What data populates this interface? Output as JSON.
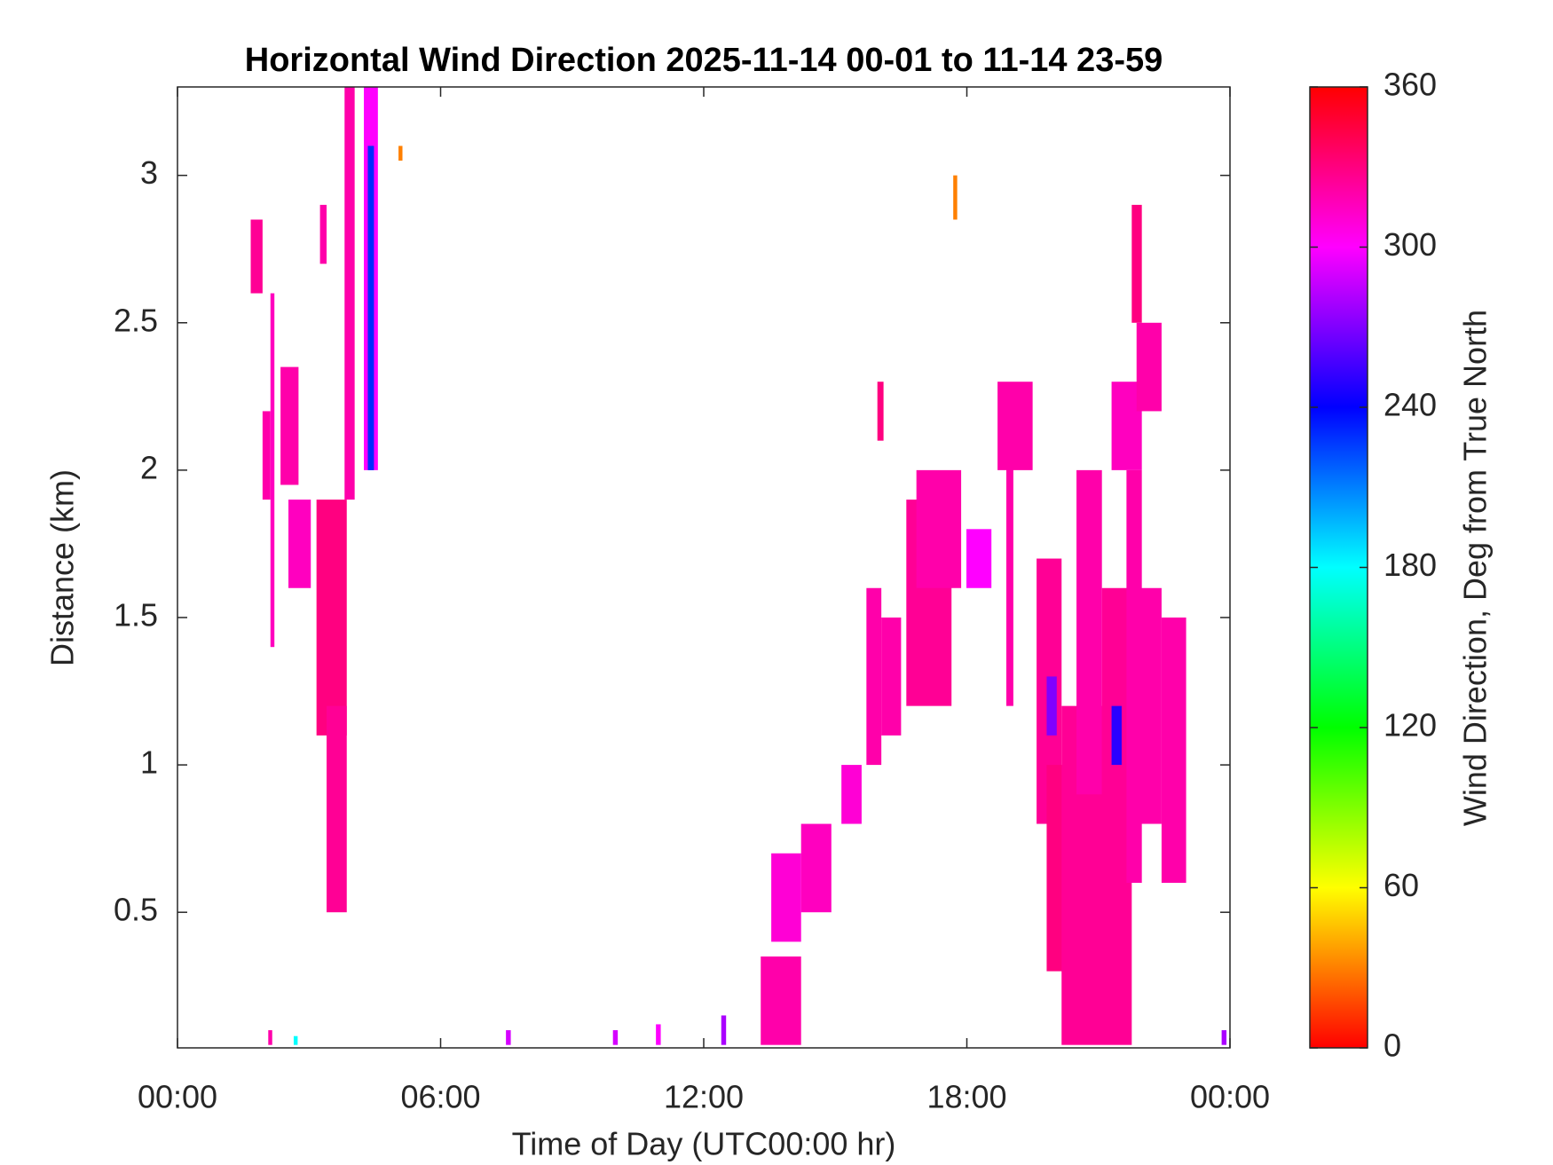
{
  "chart_data": {
    "type": "heatmap",
    "title": "Horizontal Wind Direction 2025-11-14 00-01 to 11-14 23-59",
    "x_label": "Time of Day (UTC00:00 hr)",
    "y_label": "Distance (km)",
    "colorbar_label": "Wind Direction, Deg from True North",
    "colormap": "hsv",
    "xlim": [
      0,
      24
    ],
    "xticks": [
      {
        "value": 0,
        "label": "00:00"
      },
      {
        "value": 6,
        "label": "06:00"
      },
      {
        "value": 12,
        "label": "12:00"
      },
      {
        "value": 18,
        "label": "18:00"
      },
      {
        "value": 24,
        "label": "00:00"
      }
    ],
    "ylim": [
      0.04,
      3.3
    ],
    "yticks": [
      0.5,
      1,
      1.5,
      2,
      2.5,
      3
    ],
    "clim": [
      0,
      360
    ],
    "cticks": [
      0,
      60,
      120,
      180,
      240,
      300,
      360
    ],
    "x_start": [
      1.67,
      1.94,
      2.12,
      2.35,
      2.53,
      3.17,
      3.4,
      3.81,
      4.25,
      4.34,
      3.25,
      13.3,
      13.54,
      14.22,
      15.14,
      15.71,
      15.96,
      16.05,
      16.62,
      16.85,
      17.99,
      18.7,
      18.9,
      19.59,
      19.82,
      20.16,
      20.5,
      21.08,
      21.3,
      21.64,
      21.76,
      21.87,
      21.87,
      22.44,
      19.82,
      21.3,
      7.49,
      9.93,
      10.91,
      12.4,
      23.81,
      2.07,
      2.65,
      17.69,
      5.04
    ],
    "x_end": [
      1.94,
      2.12,
      2.21,
      2.76,
      3.04,
      3.86,
      3.86,
      4.04,
      4.57,
      4.48,
      3.4,
      14.22,
      14.22,
      14.91,
      15.6,
      16.05,
      16.1,
      16.5,
      17.65,
      17.87,
      18.56,
      19.5,
      19.06,
      20.16,
      20.39,
      21.76,
      21.08,
      21.65,
      21.99,
      21.99,
      21.99,
      22.44,
      22.44,
      23.0,
      20.05,
      21.53,
      7.6,
      10.04,
      11.02,
      12.51,
      23.92,
      2.16,
      2.74,
      17.78,
      5.13
    ],
    "y_bottom": [
      2.6,
      1.9,
      1.4,
      1.95,
      1.6,
      1.1,
      0.5,
      1.9,
      2.0,
      2.0,
      2.7,
      0.05,
      0.4,
      0.5,
      0.8,
      1.0,
      2.1,
      1.1,
      1.2,
      1.6,
      1.6,
      2.0,
      1.2,
      0.8,
      0.3,
      0.05,
      0.9,
      0.5,
      2.0,
      0.6,
      2.5,
      0.8,
      2.2,
      0.6,
      1.1,
      1.0,
      0.05,
      0.05,
      0.05,
      0.05,
      0.05,
      0.05,
      0.05,
      2.85,
      3.05
    ],
    "y_top": [
      2.85,
      2.2,
      2.6,
      2.35,
      1.9,
      1.9,
      1.2,
      3.3,
      3.3,
      3.1,
      2.9,
      0.35,
      0.7,
      0.8,
      1.0,
      1.6,
      2.3,
      1.5,
      1.9,
      2.0,
      1.8,
      2.3,
      2.2,
      1.7,
      1.0,
      1.2,
      2.0,
      1.6,
      2.3,
      2.0,
      2.9,
      1.6,
      2.5,
      1.5,
      1.3,
      1.2,
      0.1,
      0.1,
      0.12,
      0.15,
      0.1,
      0.1,
      0.08,
      3.0,
      3.1
    ],
    "values": [
      325,
      320,
      315,
      320,
      315,
      330,
      325,
      320,
      300,
      230,
      320,
      320,
      310,
      315,
      310,
      320,
      330,
      320,
      325,
      320,
      300,
      320,
      320,
      325,
      330,
      325,
      320,
      325,
      315,
      320,
      330,
      320,
      320,
      320,
      270,
      250,
      290,
      290,
      300,
      280,
      280,
      320,
      180,
      30,
      30
    ]
  }
}
